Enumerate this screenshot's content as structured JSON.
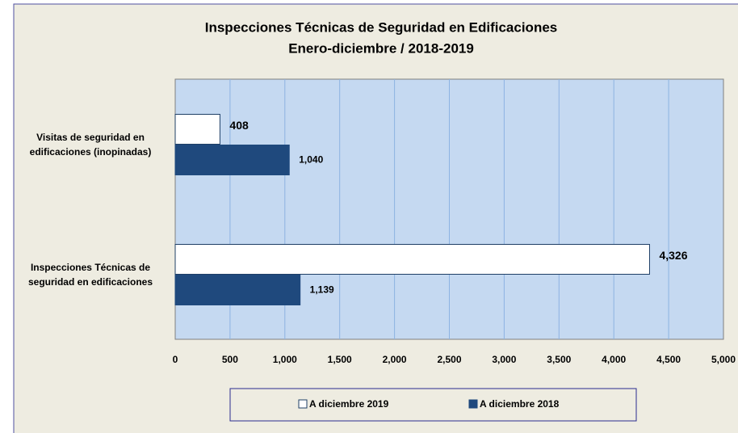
{
  "chart_data": {
    "type": "barh",
    "title": "Inspecciones Técnicas de Seguridad en Edificaciones",
    "subtitle": "Enero-diciembre / 2018-2019",
    "categories": [
      "Visitas de seguridad en edificaciones (inopinadas)",
      "Inspecciones Técnicas de seguridad en edificaciones"
    ],
    "series": [
      {
        "name": "A diciembre 2019",
        "color": "#ffffff",
        "values": [
          408,
          4326
        ],
        "value_labels": [
          "408",
          "4,326"
        ]
      },
      {
        "name": "A diciembre 2018",
        "color": "#1f497d",
        "values": [
          1040,
          1139
        ],
        "value_labels": [
          "1,040",
          "1,139"
        ]
      }
    ],
    "xlim": [
      0,
      5000
    ],
    "xticks": [
      0,
      500,
      {
        "value": 1000,
        "label": "1,000"
      },
      {
        "value": 1500,
        "label": "1,500"
      },
      {
        "value": 2000,
        "label": "2,000"
      },
      {
        "value": 2500,
        "label": "2,500"
      },
      {
        "value": 3000,
        "label": "3,000"
      },
      {
        "value": 3500,
        "label": "3,500"
      },
      {
        "value": 4000,
        "label": "4,000"
      },
      {
        "value": 4500,
        "label": "4,500"
      },
      {
        "value": 5000,
        "label": "5,000"
      }
    ],
    "grid": true,
    "legend": "bottom"
  }
}
